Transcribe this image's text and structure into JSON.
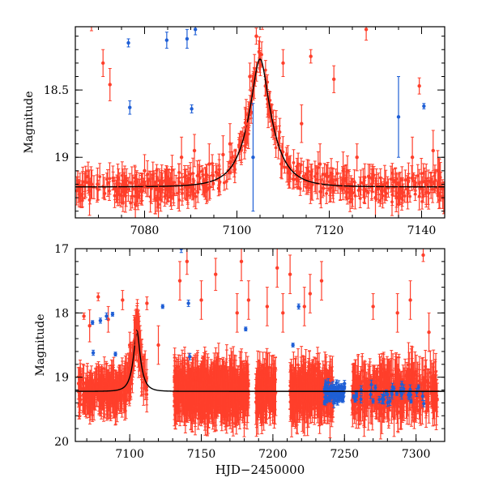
{
  "colors": {
    "red": "#ff3f2b",
    "blue": "#1f5fd6",
    "model": "#000000"
  },
  "chart_data": [
    {
      "type": "scatter",
      "panel": "top",
      "xlabel": "",
      "ylabel": "Magnitude",
      "xlim": [
        7065,
        7145
      ],
      "ylim_inverted": [
        19.45,
        18.03
      ],
      "xticks": [
        {
          "value": 7080,
          "label": "7080"
        },
        {
          "value": 7100,
          "label": "7100"
        },
        {
          "value": 7120,
          "label": "7120"
        },
        {
          "value": 7140,
          "label": "7140"
        }
      ],
      "yticks": [
        {
          "value": 18.5,
          "label": "18.5"
        },
        {
          "value": 19.0,
          "label": "19"
        }
      ],
      "model": {
        "name": "microlensing fit",
        "baseline": 19.22,
        "peak_time": 7105,
        "peak_mag": 18.27,
        "tE": 5.2
      },
      "series": [
        {
          "name": "red survey",
          "color": "red",
          "points": [
            [
              7068.5,
              18.0,
              0.06
            ],
            [
              7069.8,
              19.2,
              0.12
            ],
            [
              7071,
              18.3,
              0.1
            ],
            [
              7072.5,
              18.46,
              0.12
            ],
            [
              7074.2,
              19.15,
              0.1
            ],
            [
              7078,
              19.35,
              0.12
            ],
            [
              7080,
              19.1,
              0.12
            ],
            [
              7083,
              19.35,
              0.15
            ],
            [
              7088,
              19.0,
              0.15
            ],
            [
              7090.8,
              18.95,
              0.12
            ],
            [
              7094,
              19.05,
              0.15
            ],
            [
              7097,
              18.98,
              0.14
            ],
            [
              7098.5,
              18.9,
              0.15
            ],
            [
              7102,
              18.75,
              0.18
            ],
            [
              7102.8,
              18.4,
              0.1
            ],
            [
              7104.2,
              18.1,
              0.06
            ],
            [
              7105.5,
              18.0,
              0.05
            ],
            [
              7110,
              18.3,
              0.1
            ],
            [
              7114,
              18.75,
              0.14
            ],
            [
              7116,
              18.25,
              0.05
            ],
            [
              7118,
              19.05,
              0.15
            ],
            [
              7121,
              18.42,
              0.1
            ],
            [
              7123,
              19.1,
              0.14
            ],
            [
              7126,
              19.0,
              0.1
            ],
            [
              7128,
              18.05,
              0.08
            ],
            [
              7130,
              19.3,
              0.15
            ],
            [
              7132,
              19.2,
              0.14
            ],
            [
              7135,
              19.35,
              0.15
            ],
            [
              7138,
              19.0,
              0.15
            ],
            [
              7139.5,
              18.47,
              0.06
            ],
            [
              7141,
              19.2,
              0.15
            ],
            [
              7142.5,
              18.95,
              0.15
            ],
            [
              7143.5,
              19.1,
              0.15
            ]
          ]
        },
        {
          "name": "blue survey",
          "color": "blue",
          "points": [
            [
              7076.5,
              18.15,
              0.03
            ],
            [
              7076.8,
              18.63,
              0.05
            ],
            [
              7084.8,
              18.13,
              0.06
            ],
            [
              7089.2,
              18.12,
              0.07
            ],
            [
              7090.2,
              18.64,
              0.03
            ],
            [
              7091.0,
              18.05,
              0.04
            ],
            [
              7103.5,
              19.0,
              0.4
            ],
            [
              7135.0,
              18.7,
              0.3
            ],
            [
              7140.5,
              18.62,
              0.02
            ]
          ]
        }
      ]
    },
    {
      "type": "scatter",
      "panel": "bottom",
      "xlabel": "HJD−2450000",
      "ylabel": "Magnitude",
      "xlim": [
        7062,
        7320
      ],
      "ylim_inverted": [
        20.0,
        17.0
      ],
      "xticks": [
        {
          "value": 7100,
          "label": "7100"
        },
        {
          "value": 7150,
          "label": "7150"
        },
        {
          "value": 7200,
          "label": "7200"
        },
        {
          "value": 7250,
          "label": "7250"
        },
        {
          "value": 7300,
          "label": "7300"
        }
      ],
      "yticks": [
        {
          "value": 17,
          "label": "17"
        },
        {
          "value": 18,
          "label": "18"
        },
        {
          "value": 19,
          "label": "19"
        },
        {
          "value": 20,
          "label": "20"
        }
      ],
      "model": {
        "name": "microlensing fit",
        "baseline": 19.22,
        "peak_time": 7105,
        "peak_mag": 18.27,
        "tE": 5.2
      },
      "series": [
        {
          "name": "red survey",
          "color": "red",
          "points": [
            [
              7068,
              18.05,
              0.05
            ],
            [
              7072,
              18.2,
              0.25
            ],
            [
              7078,
              17.75,
              0.06
            ],
            [
              7085,
              18.1,
              0.2
            ],
            [
              7095,
              17.8,
              0.15
            ],
            [
              7100,
              18.5,
              0.2
            ],
            [
              7104,
              18.3,
              0.2
            ],
            [
              7112,
              17.85,
              0.1
            ],
            [
              7120,
              18.5,
              0.3
            ],
            [
              7135,
              17.5,
              0.3
            ],
            [
              7140,
              17.2,
              0.2
            ],
            [
              7150,
              17.8,
              0.3
            ],
            [
              7160,
              17.4,
              0.25
            ],
            [
              7175,
              18.0,
              0.3
            ],
            [
              7178,
              17.2,
              0.3
            ],
            [
              7183,
              17.8,
              0.3
            ],
            [
              7196,
              17.9,
              0.3
            ],
            [
              7203,
              17.3,
              0.3
            ],
            [
              7207,
              18.0,
              0.3
            ],
            [
              7212,
              17.4,
              0.3
            ],
            [
              7222,
              17.9,
              0.3
            ],
            [
              7226,
              17.7,
              0.3
            ],
            [
              7234,
              17.5,
              0.3
            ],
            [
              7270,
              17.9,
              0.2
            ],
            [
              7287,
              18.0,
              0.3
            ],
            [
              7296,
              17.8,
              0.3
            ],
            [
              7305,
              17.1,
              0.1
            ],
            [
              7309,
              18.3,
              0.3
            ]
          ]
        },
        {
          "name": "blue survey",
          "color": "blue",
          "points": [
            [
              7074,
              18.15,
              0.03
            ],
            [
              7074.5,
              18.62,
              0.04
            ],
            [
              7079.5,
              18.12,
              0.04
            ],
            [
              7083.8,
              18.05,
              0.05
            ],
            [
              7088,
              18.02,
              0.03
            ],
            [
              7090,
              18.64,
              0.03
            ],
            [
              7123,
              17.9,
              0.03
            ],
            [
              7136,
              17.0,
              0.06
            ],
            [
              7141,
              17.85,
              0.05
            ],
            [
              7142,
              18.68,
              0.05
            ],
            [
              7181,
              18.25,
              0.03
            ],
            [
              7214,
              18.5,
              0.03
            ],
            [
              7218,
              17.9,
              0.04
            ],
            [
              7250,
              19.1,
              0.05
            ]
          ]
        }
      ]
    }
  ]
}
